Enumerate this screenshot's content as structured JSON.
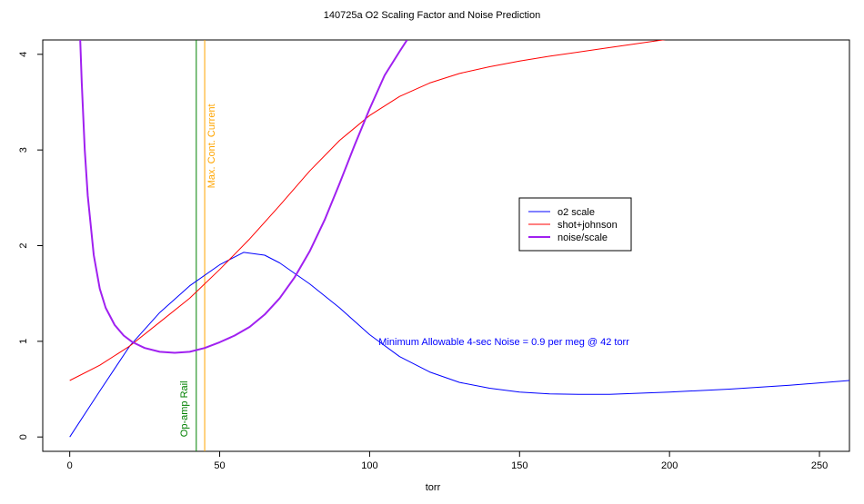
{
  "chart_data": {
    "type": "line",
    "title": "140725a  O2 Scaling Factor and Noise Prediction",
    "xlabel": "torr",
    "ylabel": "",
    "xlim": [
      -9,
      260
    ],
    "ylim": [
      -0.15,
      4.15
    ],
    "x_ticks": [
      0,
      50,
      100,
      150,
      200,
      250
    ],
    "y_ticks": [
      0,
      1,
      2,
      3,
      4
    ],
    "grid": false,
    "legend_position": "right-center",
    "series": [
      {
        "name": "o2 scale",
        "color": "#0000ff",
        "line_width": 1,
        "x": [
          0,
          10,
          20,
          30,
          40,
          50,
          58,
          65,
          70,
          80,
          90,
          100,
          110,
          120,
          130,
          140,
          150,
          160,
          170,
          180,
          200,
          220,
          240,
          260
        ],
        "y": [
          0.0,
          0.48,
          0.95,
          1.3,
          1.58,
          1.8,
          1.93,
          1.9,
          1.82,
          1.6,
          1.35,
          1.07,
          0.84,
          0.68,
          0.57,
          0.51,
          0.47,
          0.45,
          0.445,
          0.445,
          0.47,
          0.5,
          0.54,
          0.59
        ]
      },
      {
        "name": "shot+johnson",
        "color": "#ff0000",
        "line_width": 1,
        "x": [
          0,
          10,
          20,
          30,
          40,
          50,
          60,
          70,
          80,
          90,
          100,
          110,
          120,
          130,
          140,
          150,
          160,
          180,
          200
        ],
        "y": [
          0.59,
          0.75,
          0.95,
          1.2,
          1.45,
          1.75,
          2.07,
          2.42,
          2.78,
          3.1,
          3.36,
          3.56,
          3.7,
          3.8,
          3.87,
          3.93,
          3.98,
          4.07,
          4.16
        ]
      },
      {
        "name": "noise/scale",
        "color": "#a020f0",
        "line_width": 2,
        "x": [
          3.5,
          4,
          5,
          6,
          8,
          10,
          12,
          15,
          18,
          21,
          25,
          30,
          35,
          40,
          45,
          50,
          55,
          60,
          65,
          70,
          75,
          80,
          85,
          90,
          95,
          100,
          105,
          110,
          112.5
        ],
        "y": [
          4.15,
          3.7,
          3.0,
          2.52,
          1.9,
          1.55,
          1.35,
          1.17,
          1.06,
          0.99,
          0.93,
          0.89,
          0.88,
          0.89,
          0.93,
          0.99,
          1.06,
          1.15,
          1.28,
          1.45,
          1.67,
          1.94,
          2.27,
          2.65,
          3.05,
          3.43,
          3.78,
          4.03,
          4.15
        ]
      }
    ],
    "vlines": [
      {
        "x": 42.2,
        "color": "#008000",
        "label": "Op-amp Rail"
      },
      {
        "x": 45,
        "color": "#ffa500",
        "label": "Max. Cont. Current"
      }
    ],
    "annotation": {
      "text": "Minimum Allowable 4-sec Noise =  0.9  per meg @  42  torr",
      "x": 103,
      "y": 1.0,
      "color": "#0000ff"
    }
  }
}
